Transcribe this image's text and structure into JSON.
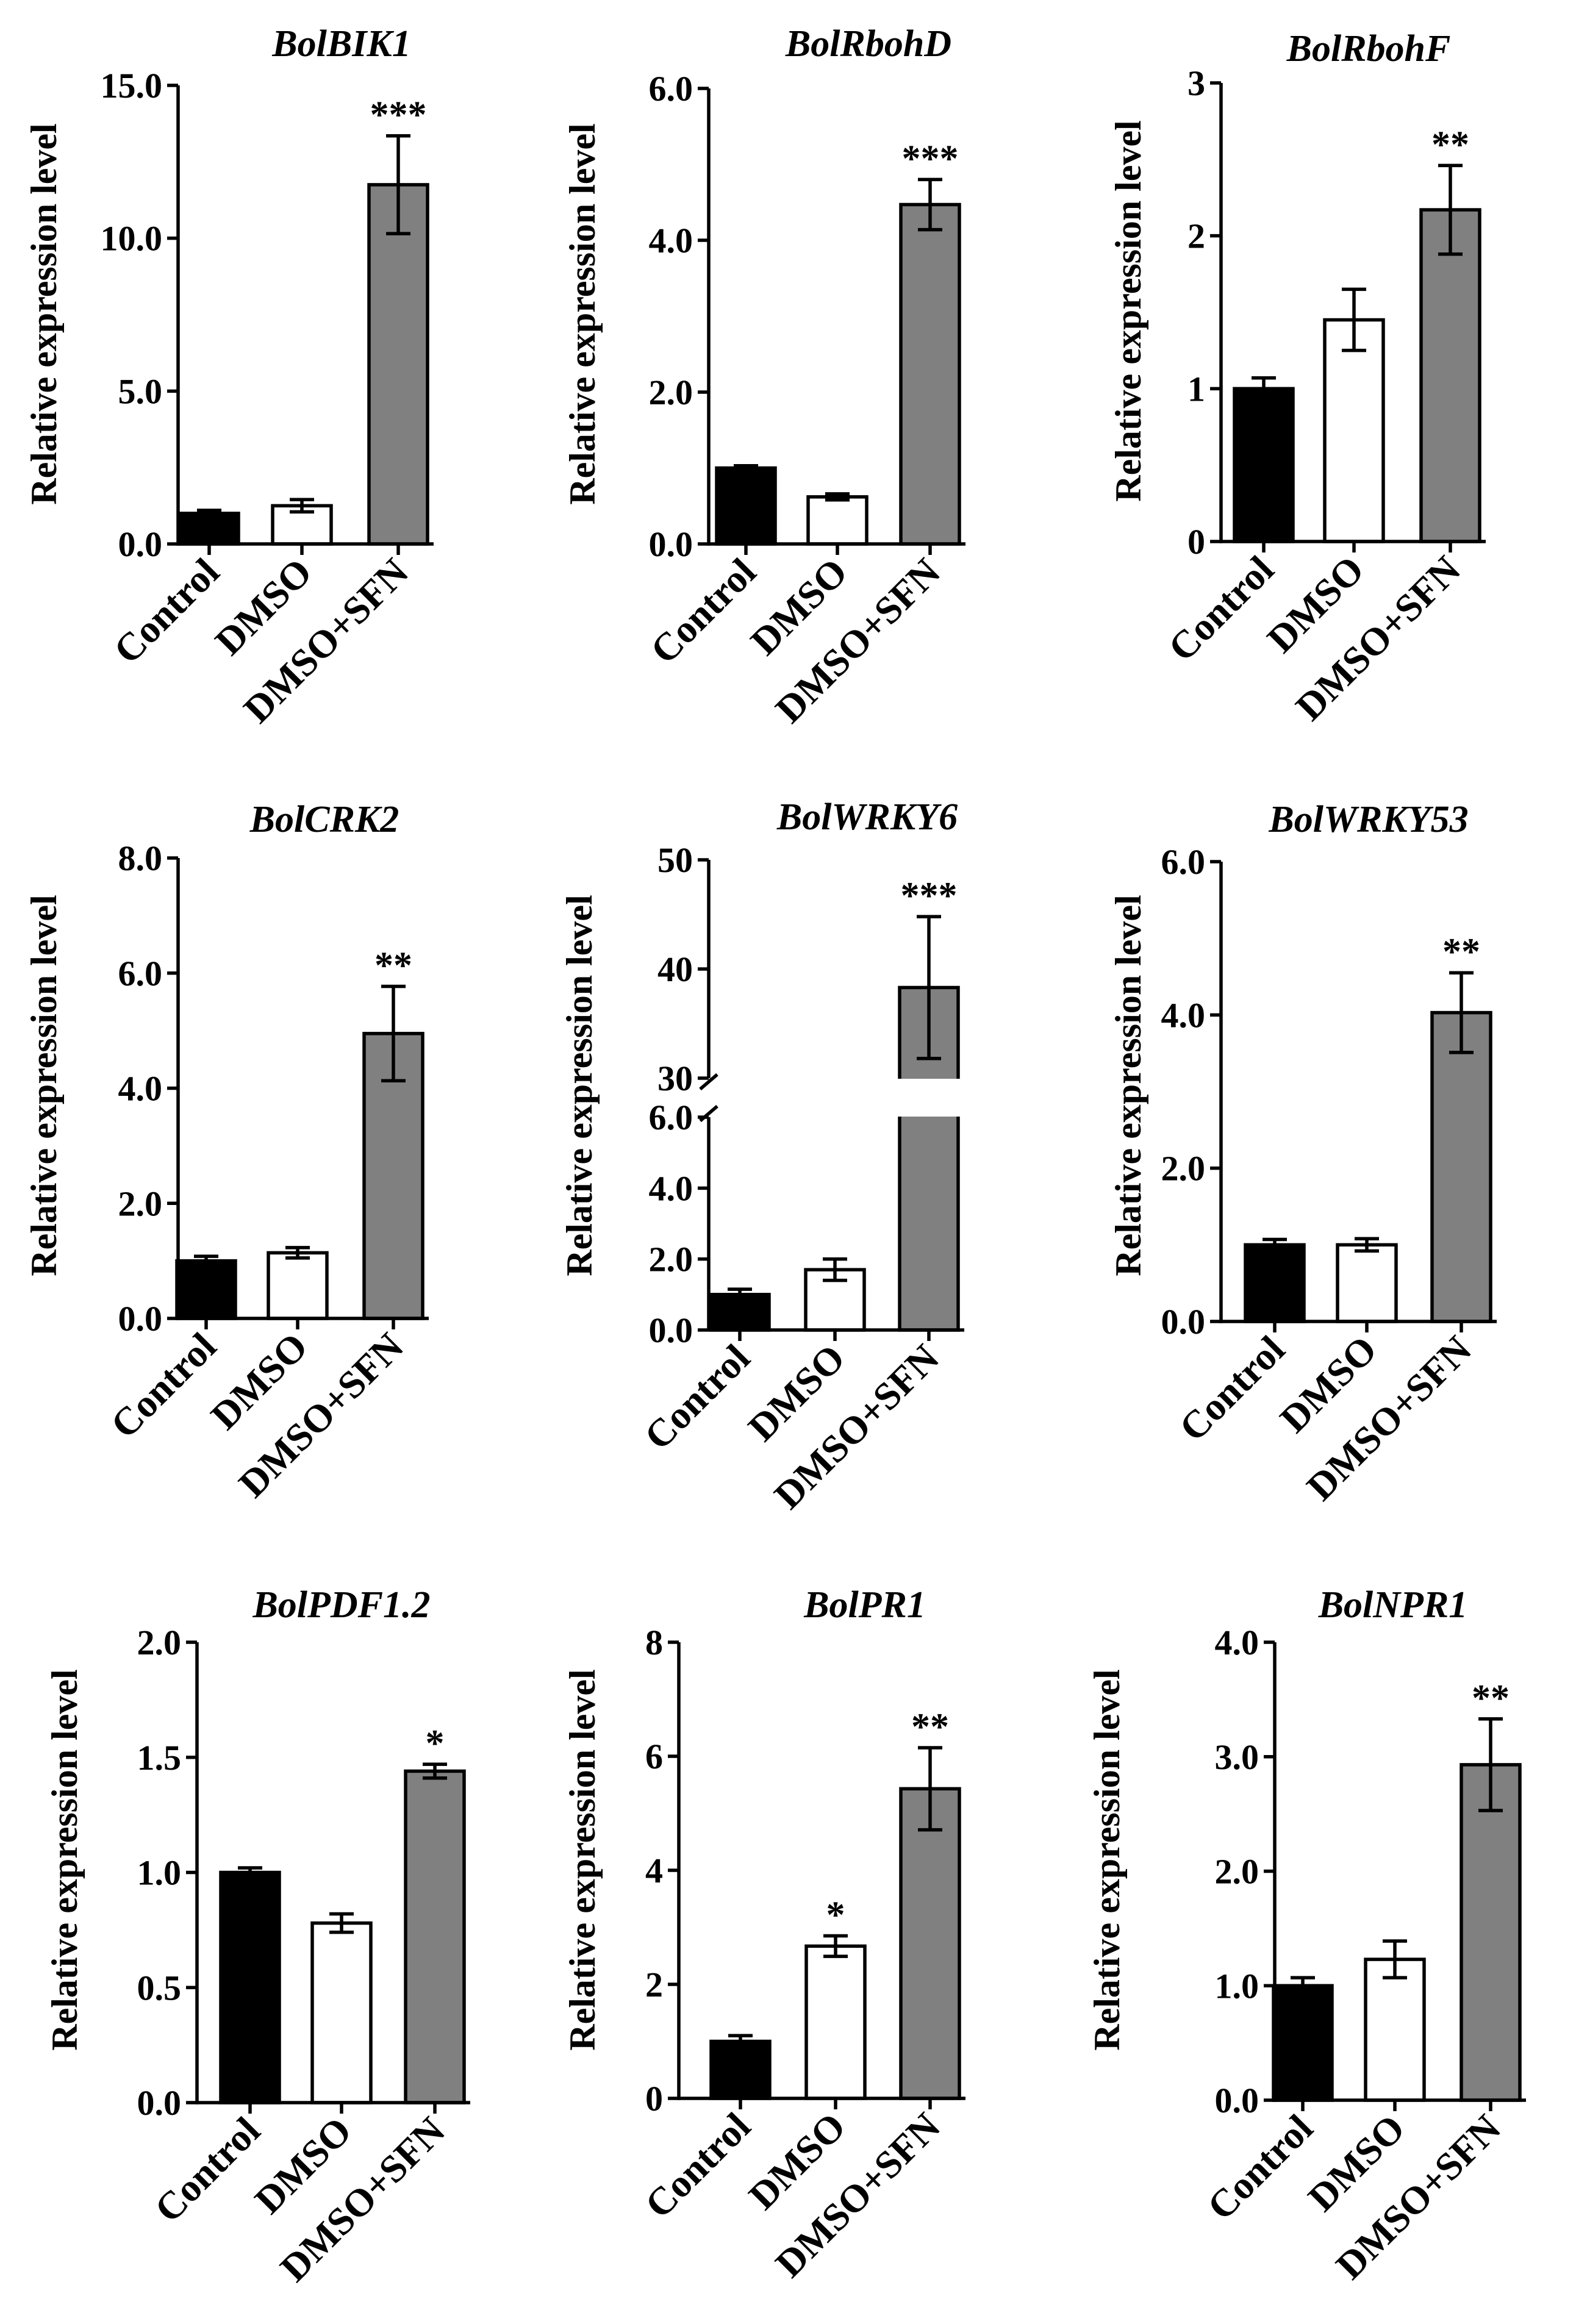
{
  "colors": {
    "control": "#000000",
    "dmso": "#ffffff",
    "dmso_sfn": "#808080",
    "axis": "#000000"
  },
  "chart_data": [
    {
      "type": "bar",
      "title": "BolBIK1",
      "ylabel": "Relative expression level",
      "categories": [
        "Control",
        "DMSO",
        "DMSO+SFN"
      ],
      "values": [
        1.0,
        1.25,
        11.75
      ],
      "errors": [
        0.1,
        0.2,
        1.6
      ],
      "significance": [
        "",
        "",
        "***"
      ],
      "ylim": [
        0,
        15
      ],
      "yticks": [
        0,
        5,
        10,
        15
      ],
      "ytick_labels": [
        "0.0",
        "5.0",
        "10.0",
        "15.0"
      ]
    },
    {
      "type": "bar",
      "title": "BolRbohD",
      "ylabel": "Relative expression level",
      "categories": [
        "Control",
        "DMSO",
        "DMSO+SFN"
      ],
      "values": [
        1.0,
        0.62,
        4.47
      ],
      "errors": [
        0.03,
        0.04,
        0.33
      ],
      "significance": [
        "",
        "",
        "***"
      ],
      "ylim": [
        0,
        6
      ],
      "yticks": [
        0,
        2,
        4,
        6
      ],
      "ytick_labels": [
        "0.0",
        "2.0",
        "4.0",
        "6.0"
      ]
    },
    {
      "type": "bar",
      "title": "BolRbohF",
      "ylabel": "Relative expression level",
      "categories": [
        "Control",
        "DMSO",
        "DMSO+SFN"
      ],
      "values": [
        1.0,
        1.45,
        2.17
      ],
      "errors": [
        0.07,
        0.2,
        0.29
      ],
      "significance": [
        "",
        "",
        "**"
      ],
      "ylim": [
        0,
        3
      ],
      "yticks": [
        0,
        1,
        2,
        3
      ],
      "ytick_labels": [
        "0",
        "1",
        "2",
        "3"
      ]
    },
    {
      "type": "bar",
      "title": "BolCRK2",
      "ylabel": "Relative expression level",
      "categories": [
        "Control",
        "DMSO",
        "DMSO+SFN"
      ],
      "values": [
        1.0,
        1.14,
        4.95
      ],
      "errors": [
        0.08,
        0.09,
        0.82
      ],
      "significance": [
        "",
        "",
        "**"
      ],
      "ylim": [
        0,
        8
      ],
      "yticks": [
        0,
        2,
        4,
        6,
        8
      ],
      "ytick_labels": [
        "0.0",
        "2.0",
        "4.0",
        "6.0",
        "8.0"
      ]
    },
    {
      "type": "bar",
      "title": "BolWRKY6",
      "ylabel": "Relative expression level",
      "categories": [
        "Control",
        "DMSO",
        "DMSO+SFN"
      ],
      "values": [
        1.0,
        1.7,
        38.3
      ],
      "errors": [
        0.15,
        0.3,
        6.5
      ],
      "significance": [
        "",
        "",
        "***"
      ],
      "axis_break": {
        "lower": [
          0,
          6
        ],
        "upper": [
          30,
          50
        ]
      },
      "yticks": [
        0,
        2,
        4,
        6,
        30,
        40,
        50
      ],
      "ytick_labels": [
        "0.0",
        "2.0",
        "4.0",
        "6.0",
        "30",
        "40",
        "50"
      ]
    },
    {
      "type": "bar",
      "title": "BolWRKY53",
      "ylabel": "Relative expression level",
      "categories": [
        "Control",
        "DMSO",
        "DMSO+SFN"
      ],
      "values": [
        1.0,
        1.0,
        4.03
      ],
      "errors": [
        0.07,
        0.08,
        0.52
      ],
      "significance": [
        "",
        "",
        "**"
      ],
      "ylim": [
        0,
        6
      ],
      "yticks": [
        0,
        2,
        4,
        6
      ],
      "ytick_labels": [
        "0.0",
        "2.0",
        "4.0",
        "6.0"
      ]
    },
    {
      "type": "bar",
      "title": "BolPDF1.2",
      "ylabel": "Relative expression level",
      "categories": [
        "Control",
        "DMSO",
        "DMSO+SFN"
      ],
      "values": [
        1.0,
        0.78,
        1.44
      ],
      "errors": [
        0.02,
        0.04,
        0.03
      ],
      "significance": [
        "",
        "",
        "*"
      ],
      "ylim": [
        0,
        2
      ],
      "yticks": [
        0,
        0.5,
        1,
        1.5,
        2
      ],
      "ytick_labels": [
        "0.0",
        "0.5",
        "1.0",
        "1.5",
        "2.0"
      ]
    },
    {
      "type": "bar",
      "title": "BolPR1",
      "ylabel": "Relative expression level",
      "categories": [
        "Control",
        "DMSO",
        "DMSO+SFN"
      ],
      "values": [
        1.0,
        2.67,
        5.43
      ],
      "errors": [
        0.1,
        0.18,
        0.72
      ],
      "significance": [
        "",
        "*",
        "**"
      ],
      "ylim": [
        0,
        8
      ],
      "yticks": [
        0,
        2,
        4,
        6,
        8
      ],
      "ytick_labels": [
        "0",
        "2",
        "4",
        "6",
        "8"
      ]
    },
    {
      "type": "bar",
      "title": "BolNPR1",
      "ylabel": "Relative expression level",
      "categories": [
        "Control",
        "DMSO",
        "DMSO+SFN"
      ],
      "values": [
        1.0,
        1.23,
        2.93
      ],
      "errors": [
        0.07,
        0.16,
        0.4
      ],
      "significance": [
        "",
        "",
        "**"
      ],
      "ylim": [
        0,
        4
      ],
      "yticks": [
        0,
        1,
        2,
        3,
        4
      ],
      "ytick_labels": [
        "0.0",
        "1.0",
        "2.0",
        "3.0",
        "4.0"
      ]
    }
  ]
}
